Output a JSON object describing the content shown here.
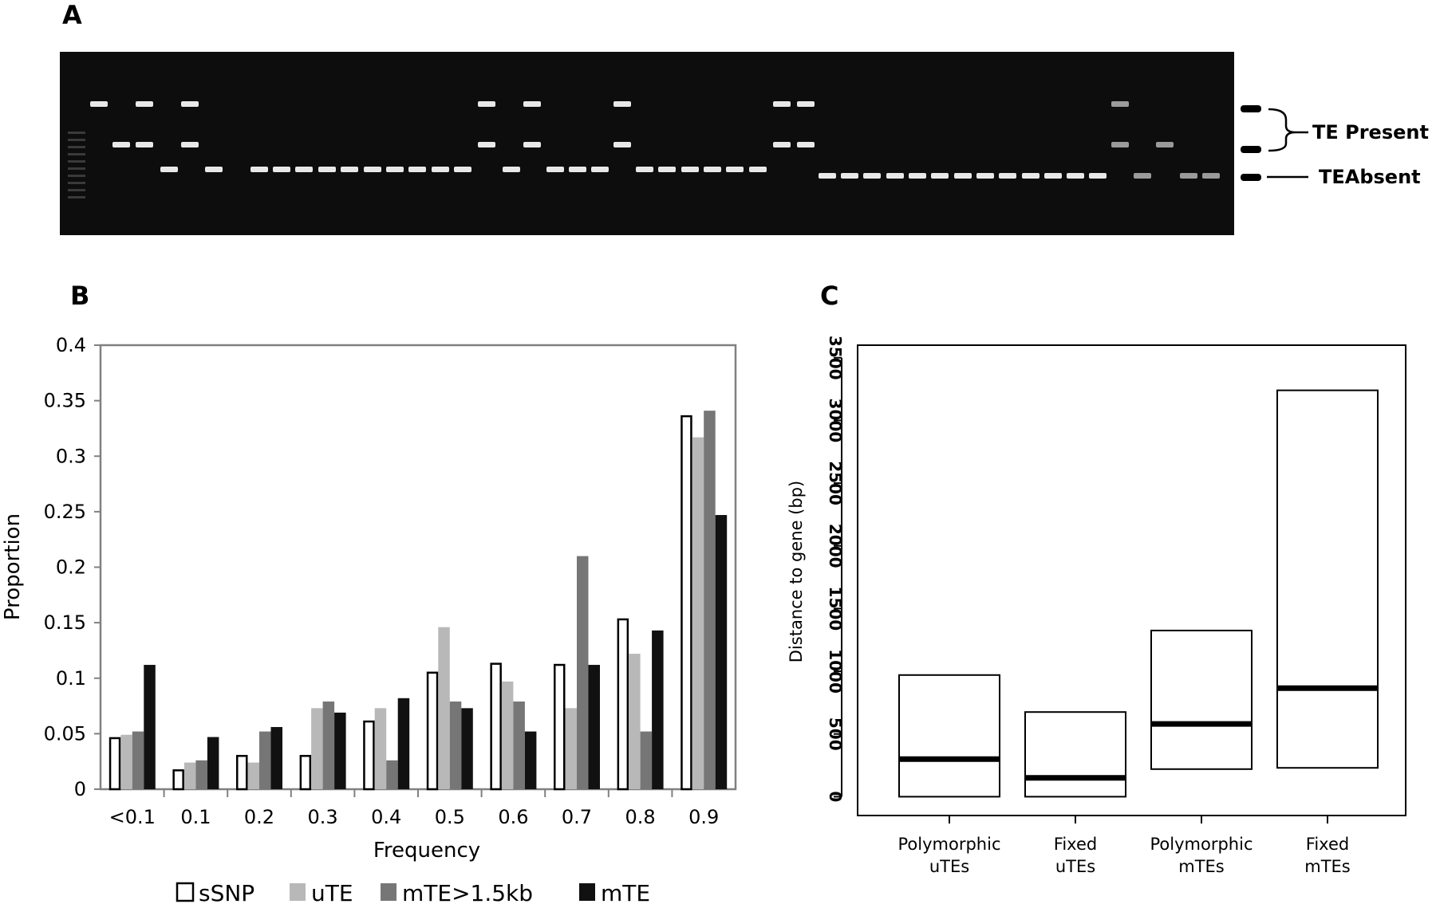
{
  "panels": {
    "a": "A",
    "b": "B",
    "c": "C"
  },
  "gel": {
    "present_label": "TE Present",
    "absent_label": "TEAbsent"
  },
  "chart_data": [
    {
      "type": "bar",
      "panel": "B",
      "categories": [
        "<0.1",
        "0.1",
        "0.2",
        "0.3",
        "0.4",
        "0.5",
        "0.6",
        "0.7",
        "0.8",
        "0.9"
      ],
      "xlabel": "Frequency",
      "ylabel": "Proportion",
      "ylim": [
        0,
        0.4
      ],
      "yticks": [
        "0",
        "0.05",
        "0.1",
        "0.15",
        "0.2",
        "0.25",
        "0.3",
        "0.35",
        "0.4"
      ],
      "legend_position": "bottom",
      "series": [
        {
          "name": "sSNP",
          "color": "#ffffff",
          "stroke": "#000000",
          "values": [
            0.046,
            0.017,
            0.03,
            0.03,
            0.061,
            0.105,
            0.113,
            0.112,
            0.153,
            0.336
          ]
        },
        {
          "name": "uTE",
          "color": "#b8b8b8",
          "values": [
            0.049,
            0.024,
            0.024,
            0.073,
            0.073,
            0.146,
            0.097,
            0.073,
            0.122,
            0.317
          ]
        },
        {
          "name": "mTE>1.5kb",
          "color": "#767676",
          "values": [
            0.052,
            0.026,
            0.052,
            0.079,
            0.026,
            0.079,
            0.079,
            0.21,
            0.052,
            0.341
          ]
        },
        {
          "name": "mTE",
          "color": "#111111",
          "values": [
            0.112,
            0.047,
            0.056,
            0.069,
            0.082,
            0.073,
            0.052,
            0.112,
            0.143,
            0.247
          ]
        }
      ]
    },
    {
      "type": "box",
      "panel": "C",
      "ylabel": "Distance to gene (bp)",
      "ylim": [
        -150,
        3600
      ],
      "yticks": [
        "0",
        "500",
        "1000",
        "1500",
        "2000",
        "2500",
        "3000",
        "3500"
      ],
      "categories": [
        {
          "line1": "Polymorphic",
          "line2": "uTEs",
          "q1": 0,
          "median": 300,
          "q3": 970
        },
        {
          "line1": "Fixed",
          "line2": "uTEs",
          "q1": 0,
          "median": 150,
          "q3": 675
        },
        {
          "line1": "Polymorphic",
          "line2": "mTEs",
          "q1": 220,
          "median": 580,
          "q3": 1325
        },
        {
          "line1": "Fixed",
          "line2": "mTEs",
          "q1": 230,
          "median": 865,
          "q3": 3240
        }
      ]
    }
  ]
}
